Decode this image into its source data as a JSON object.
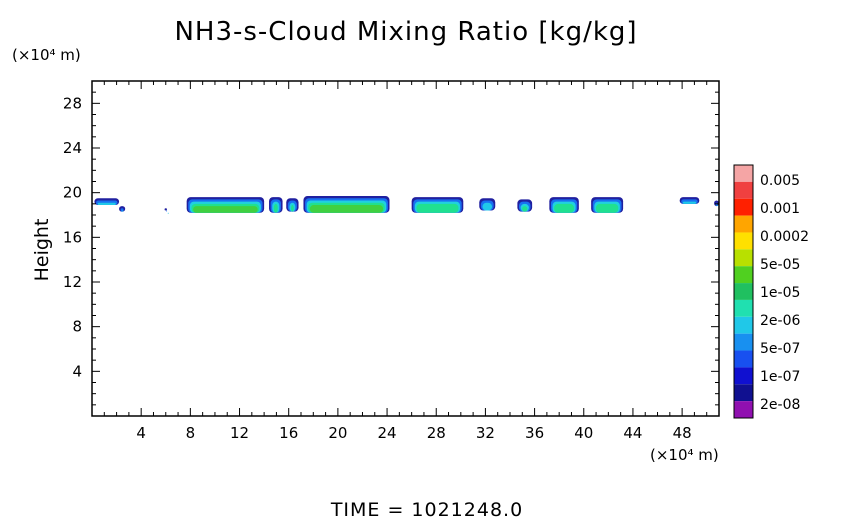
{
  "chart_data": {
    "type": "heatmap",
    "title": "NH3-s-Cloud Mixing Ratio [kg/kg]",
    "ylabel": "Height",
    "x_unit": "(×10⁴ m)",
    "y_unit": "(×10⁴ m)",
    "footer": "TIME = 1021248.0",
    "xlim": [
      0,
      51
    ],
    "ylim": [
      0,
      30
    ],
    "xticks": [
      4,
      8,
      12,
      16,
      20,
      24,
      28,
      32,
      36,
      40,
      44,
      48
    ],
    "yticks": [
      4,
      8,
      12,
      16,
      20,
      24,
      28
    ],
    "colorbar": {
      "labels": [
        "0.005",
        "0.001",
        "0.0002",
        "5e-05",
        "1e-05",
        "2e-06",
        "5e-07",
        "1e-07",
        "2e-08"
      ],
      "colors": [
        "#f5a5a5",
        "#f04040",
        "#ff2000",
        "#ffa500",
        "#ffe000",
        "#b8e000",
        "#50d020",
        "#20c060",
        "#20e0b0",
        "#20c8e8",
        "#1890f0",
        "#1850f0",
        "#1010d0",
        "#101090",
        "#9010b0"
      ]
    },
    "cloud_patches": [
      {
        "x": [
          0.2,
          2.2
        ],
        "y": [
          18.9,
          19.5
        ],
        "level": "5e-07"
      },
      {
        "x": [
          2.2,
          2.7
        ],
        "y": [
          18.3,
          18.8
        ],
        "level": "5e-07"
      },
      {
        "x": [
          5.9,
          6.1
        ],
        "y": [
          18.4,
          18.6
        ],
        "level": "5e-07"
      },
      {
        "x": [
          7.7,
          14.0
        ],
        "y": [
          18.2,
          19.6
        ],
        "level": "1e-05"
      },
      {
        "x": [
          14.4,
          15.5
        ],
        "y": [
          18.2,
          19.6
        ],
        "level": "2e-06"
      },
      {
        "x": [
          15.8,
          16.8
        ],
        "y": [
          18.3,
          19.5
        ],
        "level": "2e-06"
      },
      {
        "x": [
          17.2,
          24.2
        ],
        "y": [
          18.2,
          19.7
        ],
        "level": "1e-05"
      },
      {
        "x": [
          26.0,
          30.2
        ],
        "y": [
          18.2,
          19.6
        ],
        "level": "2e-06"
      },
      {
        "x": [
          31.5,
          32.8
        ],
        "y": [
          18.4,
          19.5
        ],
        "level": "5e-07"
      },
      {
        "x": [
          34.6,
          35.8
        ],
        "y": [
          18.3,
          19.4
        ],
        "level": "2e-06"
      },
      {
        "x": [
          37.2,
          39.6
        ],
        "y": [
          18.2,
          19.6
        ],
        "level": "2e-06"
      },
      {
        "x": [
          40.6,
          43.2
        ],
        "y": [
          18.2,
          19.6
        ],
        "level": "2e-06"
      },
      {
        "x": [
          47.8,
          49.4
        ],
        "y": [
          19.0,
          19.6
        ],
        "level": "5e-07"
      },
      {
        "x": [
          50.6,
          51.0
        ],
        "y": [
          18.8,
          19.3
        ],
        "level": "5e-07"
      }
    ]
  }
}
